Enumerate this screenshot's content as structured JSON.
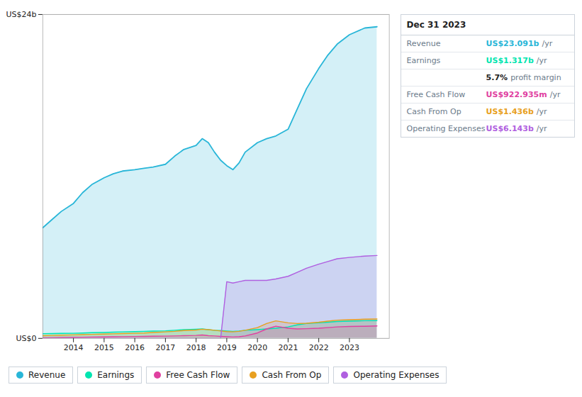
{
  "chart_data": {
    "type": "area",
    "x": [
      2013.0,
      2013.3,
      2013.6,
      2014.0,
      2014.3,
      2014.6,
      2015.0,
      2015.3,
      2015.6,
      2016.0,
      2016.3,
      2016.6,
      2017.0,
      2017.3,
      2017.6,
      2018.0,
      2018.2,
      2018.4,
      2018.6,
      2018.8,
      2019.0,
      2019.2,
      2019.4,
      2019.6,
      2020.0,
      2020.3,
      2020.6,
      2021.0,
      2021.3,
      2021.6,
      2022.0,
      2022.3,
      2022.6,
      2023.0,
      2023.5,
      2023.9
    ],
    "series": [
      {
        "name": "Revenue",
        "color": "#29b6d8",
        "values": [
          8.2,
          8.8,
          9.4,
          10.0,
          10.8,
          11.4,
          11.9,
          12.2,
          12.4,
          12.5,
          12.6,
          12.7,
          12.9,
          13.5,
          14.0,
          14.3,
          14.8,
          14.5,
          13.8,
          13.2,
          12.8,
          12.5,
          13.0,
          13.8,
          14.5,
          14.8,
          15.0,
          15.5,
          17.0,
          18.5,
          20.0,
          21.0,
          21.8,
          22.5,
          23.0,
          23.091
        ]
      },
      {
        "name": "Earnings",
        "color": "#00e5b0",
        "values": [
          0.35,
          0.36,
          0.37,
          0.38,
          0.4,
          0.42,
          0.44,
          0.46,
          0.48,
          0.5,
          0.52,
          0.54,
          0.56,
          0.6,
          0.65,
          0.68,
          0.7,
          0.65,
          0.6,
          0.58,
          0.55,
          0.52,
          0.55,
          0.6,
          0.65,
          0.7,
          0.75,
          0.85,
          1.0,
          1.1,
          1.15,
          1.2,
          1.25,
          1.28,
          1.31,
          1.317
        ]
      },
      {
        "name": "Free Cash Flow",
        "color": "#e040a0",
        "values": [
          0.05,
          0.06,
          0.07,
          0.08,
          0.09,
          0.1,
          0.11,
          0.12,
          0.13,
          0.14,
          0.15,
          0.16,
          0.17,
          0.18,
          0.2,
          0.22,
          0.25,
          0.2,
          0.18,
          0.15,
          0.12,
          0.1,
          0.12,
          0.18,
          0.4,
          0.7,
          0.9,
          0.75,
          0.7,
          0.72,
          0.75,
          0.8,
          0.85,
          0.88,
          0.9,
          0.922935
        ]
      },
      {
        "name": "Cash From Op",
        "color": "#e8a020",
        "values": [
          0.2,
          0.22,
          0.24,
          0.26,
          0.28,
          0.3,
          0.32,
          0.34,
          0.36,
          0.38,
          0.4,
          0.44,
          0.48,
          0.52,
          0.58,
          0.62,
          0.68,
          0.65,
          0.6,
          0.55,
          0.5,
          0.48,
          0.52,
          0.6,
          0.8,
          1.1,
          1.3,
          1.15,
          1.1,
          1.12,
          1.2,
          1.28,
          1.35,
          1.38,
          1.42,
          1.436
        ]
      },
      {
        "name": "Operating Expenses",
        "color": "#b060e0",
        "values": [
          0,
          0,
          0,
          0,
          0,
          0,
          0,
          0,
          0,
          0,
          0,
          0,
          0,
          0,
          0,
          0,
          0,
          0,
          0,
          0,
          4.2,
          4.1,
          4.2,
          4.3,
          4.3,
          4.3,
          4.4,
          4.6,
          4.9,
          5.2,
          5.5,
          5.7,
          5.9,
          6.0,
          6.1,
          6.143
        ]
      }
    ],
    "xlim": [
      2013.0,
      2024.3
    ],
    "xticks": [
      2014,
      2015,
      2016,
      2017,
      2018,
      2019,
      2020,
      2021,
      2022,
      2023
    ],
    "ylim": [
      0,
      24
    ],
    "yticks": [
      {
        "value": 0,
        "label": "US$0"
      },
      {
        "value": 24,
        "label": "US$24b"
      }
    ],
    "grid": "y",
    "legend": "bottom",
    "annotations": [
      {
        "title": "Dec 31 2023",
        "rows": [
          {
            "label": "Revenue",
            "text": "US$23.091b",
            "suffix": "/yr",
            "color": "#29b6d8"
          },
          {
            "label": "Earnings",
            "text": "US$1.317b",
            "suffix": "/yr",
            "color": "#00e5b0"
          },
          {
            "text": "5.7%",
            "suffix": "profit margin"
          },
          {
            "label": "Free Cash Flow",
            "text": "US$922.935m",
            "suffix": "/yr",
            "color": "#e040a0"
          },
          {
            "label": "Cash From Op",
            "text": "US$1.436b",
            "suffix": "/yr",
            "color": "#e8a020"
          },
          {
            "label": "Operating Expenses",
            "text": "US$6.143b",
            "suffix": "/yr",
            "color": "#b060e0"
          }
        ]
      }
    ]
  }
}
